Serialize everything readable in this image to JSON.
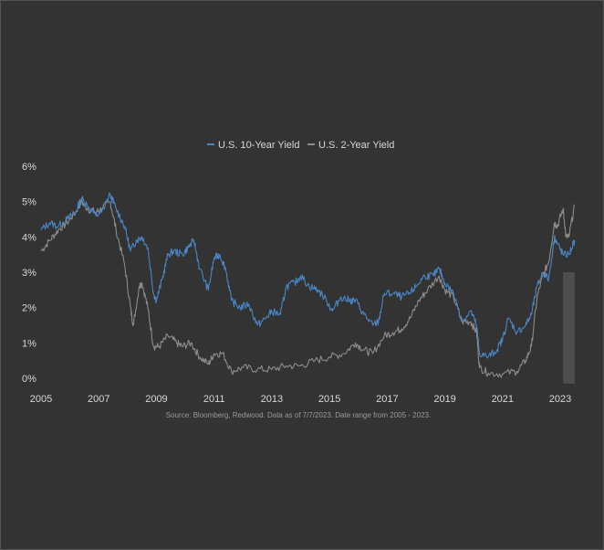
{
  "chart_data": {
    "type": "line",
    "source": "Source: Bloomberg, Redwood. Data as of 7/7/2023. Date range from 2005 - 2023.",
    "x_ticks": [
      "2005",
      "2007",
      "2009",
      "2011",
      "2013",
      "2015",
      "2017",
      "2019",
      "2021",
      "2023"
    ],
    "y_ticks": [
      "0%",
      "1%",
      "2%",
      "3%",
      "4%",
      "5%",
      "6%"
    ],
    "xlim": [
      2005,
      2023.6
    ],
    "ylim": [
      0,
      6
    ],
    "grid": false,
    "legend": "top-center",
    "series": [
      {
        "name": "U.S. 10-Year Yield",
        "color": "#4a86c5",
        "points": [
          [
            2005.0,
            4.2
          ],
          [
            2005.3,
            4.4
          ],
          [
            2005.6,
            4.3
          ],
          [
            2005.9,
            4.5
          ],
          [
            2006.2,
            4.7
          ],
          [
            2006.4,
            5.1
          ],
          [
            2006.6,
            4.9
          ],
          [
            2006.9,
            4.6
          ],
          [
            2007.1,
            4.7
          ],
          [
            2007.4,
            5.2
          ],
          [
            2007.6,
            4.8
          ],
          [
            2007.9,
            4.3
          ],
          [
            2008.1,
            3.6
          ],
          [
            2008.3,
            3.9
          ],
          [
            2008.5,
            4.0
          ],
          [
            2008.7,
            3.7
          ],
          [
            2008.9,
            2.4
          ],
          [
            2009.0,
            2.2
          ],
          [
            2009.2,
            2.8
          ],
          [
            2009.4,
            3.5
          ],
          [
            2009.6,
            3.6
          ],
          [
            2009.9,
            3.5
          ],
          [
            2010.1,
            3.7
          ],
          [
            2010.3,
            3.9
          ],
          [
            2010.5,
            3.1
          ],
          [
            2010.8,
            2.5
          ],
          [
            2011.0,
            3.4
          ],
          [
            2011.2,
            3.5
          ],
          [
            2011.4,
            3.1
          ],
          [
            2011.6,
            2.2
          ],
          [
            2011.9,
            2.0
          ],
          [
            2012.2,
            2.1
          ],
          [
            2012.5,
            1.5
          ],
          [
            2012.8,
            1.7
          ],
          [
            2013.0,
            1.9
          ],
          [
            2013.3,
            1.8
          ],
          [
            2013.5,
            2.6
          ],
          [
            2013.8,
            2.7
          ],
          [
            2014.0,
            2.9
          ],
          [
            2014.3,
            2.6
          ],
          [
            2014.6,
            2.5
          ],
          [
            2014.9,
            2.2
          ],
          [
            2015.1,
            1.9
          ],
          [
            2015.4,
            2.3
          ],
          [
            2015.7,
            2.2
          ],
          [
            2015.9,
            2.2
          ],
          [
            2016.2,
            1.8
          ],
          [
            2016.5,
            1.5
          ],
          [
            2016.7,
            1.6
          ],
          [
            2016.9,
            2.4
          ],
          [
            2017.2,
            2.4
          ],
          [
            2017.5,
            2.3
          ],
          [
            2017.8,
            2.4
          ],
          [
            2018.0,
            2.6
          ],
          [
            2018.3,
            2.9
          ],
          [
            2018.6,
            2.9
          ],
          [
            2018.8,
            3.1
          ],
          [
            2019.0,
            2.7
          ],
          [
            2019.3,
            2.4
          ],
          [
            2019.6,
            1.6
          ],
          [
            2019.9,
            1.9
          ],
          [
            2020.1,
            1.5
          ],
          [
            2020.2,
            0.7
          ],
          [
            2020.5,
            0.6
          ],
          [
            2020.8,
            0.8
          ],
          [
            2021.0,
            1.1
          ],
          [
            2021.2,
            1.7
          ],
          [
            2021.5,
            1.3
          ],
          [
            2021.8,
            1.5
          ],
          [
            2022.0,
            1.8
          ],
          [
            2022.2,
            2.6
          ],
          [
            2022.4,
            3.0
          ],
          [
            2022.6,
            2.8
          ],
          [
            2022.8,
            4.0
          ],
          [
            2022.9,
            3.8
          ],
          [
            2023.1,
            3.5
          ],
          [
            2023.3,
            3.5
          ],
          [
            2023.5,
            3.9
          ]
        ]
      },
      {
        "name": "U.S. 2-Year Yield",
        "color": "#8c8c8c",
        "points": [
          [
            2005.0,
            3.6
          ],
          [
            2005.3,
            3.9
          ],
          [
            2005.6,
            4.2
          ],
          [
            2005.9,
            4.4
          ],
          [
            2006.2,
            4.7
          ],
          [
            2006.4,
            5.0
          ],
          [
            2006.6,
            4.8
          ],
          [
            2006.9,
            4.7
          ],
          [
            2007.1,
            4.8
          ],
          [
            2007.4,
            5.0
          ],
          [
            2007.6,
            4.2
          ],
          [
            2007.9,
            3.2
          ],
          [
            2008.1,
            2.0
          ],
          [
            2008.2,
            1.5
          ],
          [
            2008.4,
            2.6
          ],
          [
            2008.5,
            2.7
          ],
          [
            2008.7,
            2.0
          ],
          [
            2008.9,
            0.9
          ],
          [
            2009.1,
            0.9
          ],
          [
            2009.4,
            1.2
          ],
          [
            2009.7,
            1.0
          ],
          [
            2009.9,
            0.9
          ],
          [
            2010.2,
            1.0
          ],
          [
            2010.5,
            0.6
          ],
          [
            2010.8,
            0.4
          ],
          [
            2011.0,
            0.7
          ],
          [
            2011.3,
            0.7
          ],
          [
            2011.6,
            0.2
          ],
          [
            2012.0,
            0.3
          ],
          [
            2012.5,
            0.25
          ],
          [
            2013.0,
            0.25
          ],
          [
            2013.5,
            0.35
          ],
          [
            2014.0,
            0.35
          ],
          [
            2014.5,
            0.5
          ],
          [
            2015.0,
            0.6
          ],
          [
            2015.5,
            0.7
          ],
          [
            2015.9,
            1.0
          ],
          [
            2016.2,
            0.8
          ],
          [
            2016.5,
            0.7
          ],
          [
            2016.9,
            1.2
          ],
          [
            2017.2,
            1.3
          ],
          [
            2017.5,
            1.4
          ],
          [
            2017.8,
            1.7
          ],
          [
            2018.1,
            2.2
          ],
          [
            2018.4,
            2.5
          ],
          [
            2018.8,
            2.9
          ],
          [
            2019.0,
            2.5
          ],
          [
            2019.3,
            2.3
          ],
          [
            2019.6,
            1.6
          ],
          [
            2019.9,
            1.6
          ],
          [
            2020.1,
            1.3
          ],
          [
            2020.2,
            0.3
          ],
          [
            2020.5,
            0.15
          ],
          [
            2021.0,
            0.12
          ],
          [
            2021.5,
            0.2
          ],
          [
            2021.8,
            0.5
          ],
          [
            2022.0,
            0.9
          ],
          [
            2022.2,
            2.3
          ],
          [
            2022.4,
            2.9
          ],
          [
            2022.6,
            3.3
          ],
          [
            2022.8,
            4.4
          ],
          [
            2022.9,
            4.3
          ],
          [
            2023.1,
            4.8
          ],
          [
            2023.2,
            4.0
          ],
          [
            2023.3,
            4.0
          ],
          [
            2023.5,
            4.9
          ]
        ]
      }
    ]
  }
}
